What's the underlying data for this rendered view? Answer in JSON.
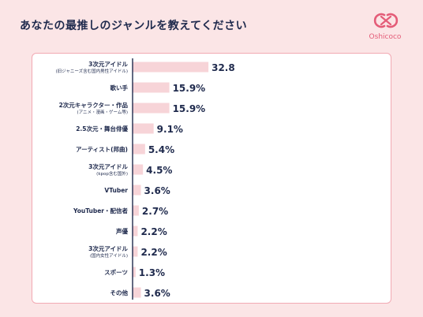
{
  "header": {
    "title": "あなたの最推しのジャンルを教えてください",
    "logo_text": "Oshicoco"
  },
  "colors": {
    "bar": "#f7d4d8",
    "axis": "#1f2a4d",
    "text": "#1f2a4d",
    "accent": "#e45c78",
    "background": "#fbe5e6"
  },
  "chart_data": {
    "type": "bar",
    "orientation": "horizontal",
    "title": "あなたの最推しのジャンルを教えてください",
    "categories": [
      {
        "label": "3次元アイドル",
        "sublabel": "(旧ジャニーズ含む国内男性アイドル)"
      },
      {
        "label": "歌い手",
        "sublabel": ""
      },
      {
        "label": "2次元キャラクター・作品",
        "sublabel": "(アニメ・漫画・ゲーム等)"
      },
      {
        "label": "2.5次元・舞台俳優",
        "sublabel": ""
      },
      {
        "label": "アーティスト(邦曲)",
        "sublabel": ""
      },
      {
        "label": "3次元アイドル",
        "sublabel": "(kpop含む国外)"
      },
      {
        "label": "VTuber",
        "sublabel": ""
      },
      {
        "label": "YouTuber・配信者",
        "sublabel": ""
      },
      {
        "label": "声優",
        "sublabel": ""
      },
      {
        "label": "3次元アイドル",
        "sublabel": "(国内女性アイドル)"
      },
      {
        "label": "スポーツ",
        "sublabel": ""
      },
      {
        "label": "その他",
        "sublabel": ""
      }
    ],
    "values": [
      32.8,
      15.9,
      15.9,
      9.1,
      5.4,
      4.5,
      3.6,
      2.7,
      2.2,
      2.2,
      1.3,
      3.6
    ],
    "value_labels": [
      "32.8",
      "15.9%",
      "15.9%",
      "9.1%",
      "5.4%",
      "4.5%",
      "3.6%",
      "2.7%",
      "2.2%",
      "2.2%",
      "1.3%",
      "3.6%"
    ],
    "unit": "%",
    "xlim": [
      0,
      40
    ]
  }
}
